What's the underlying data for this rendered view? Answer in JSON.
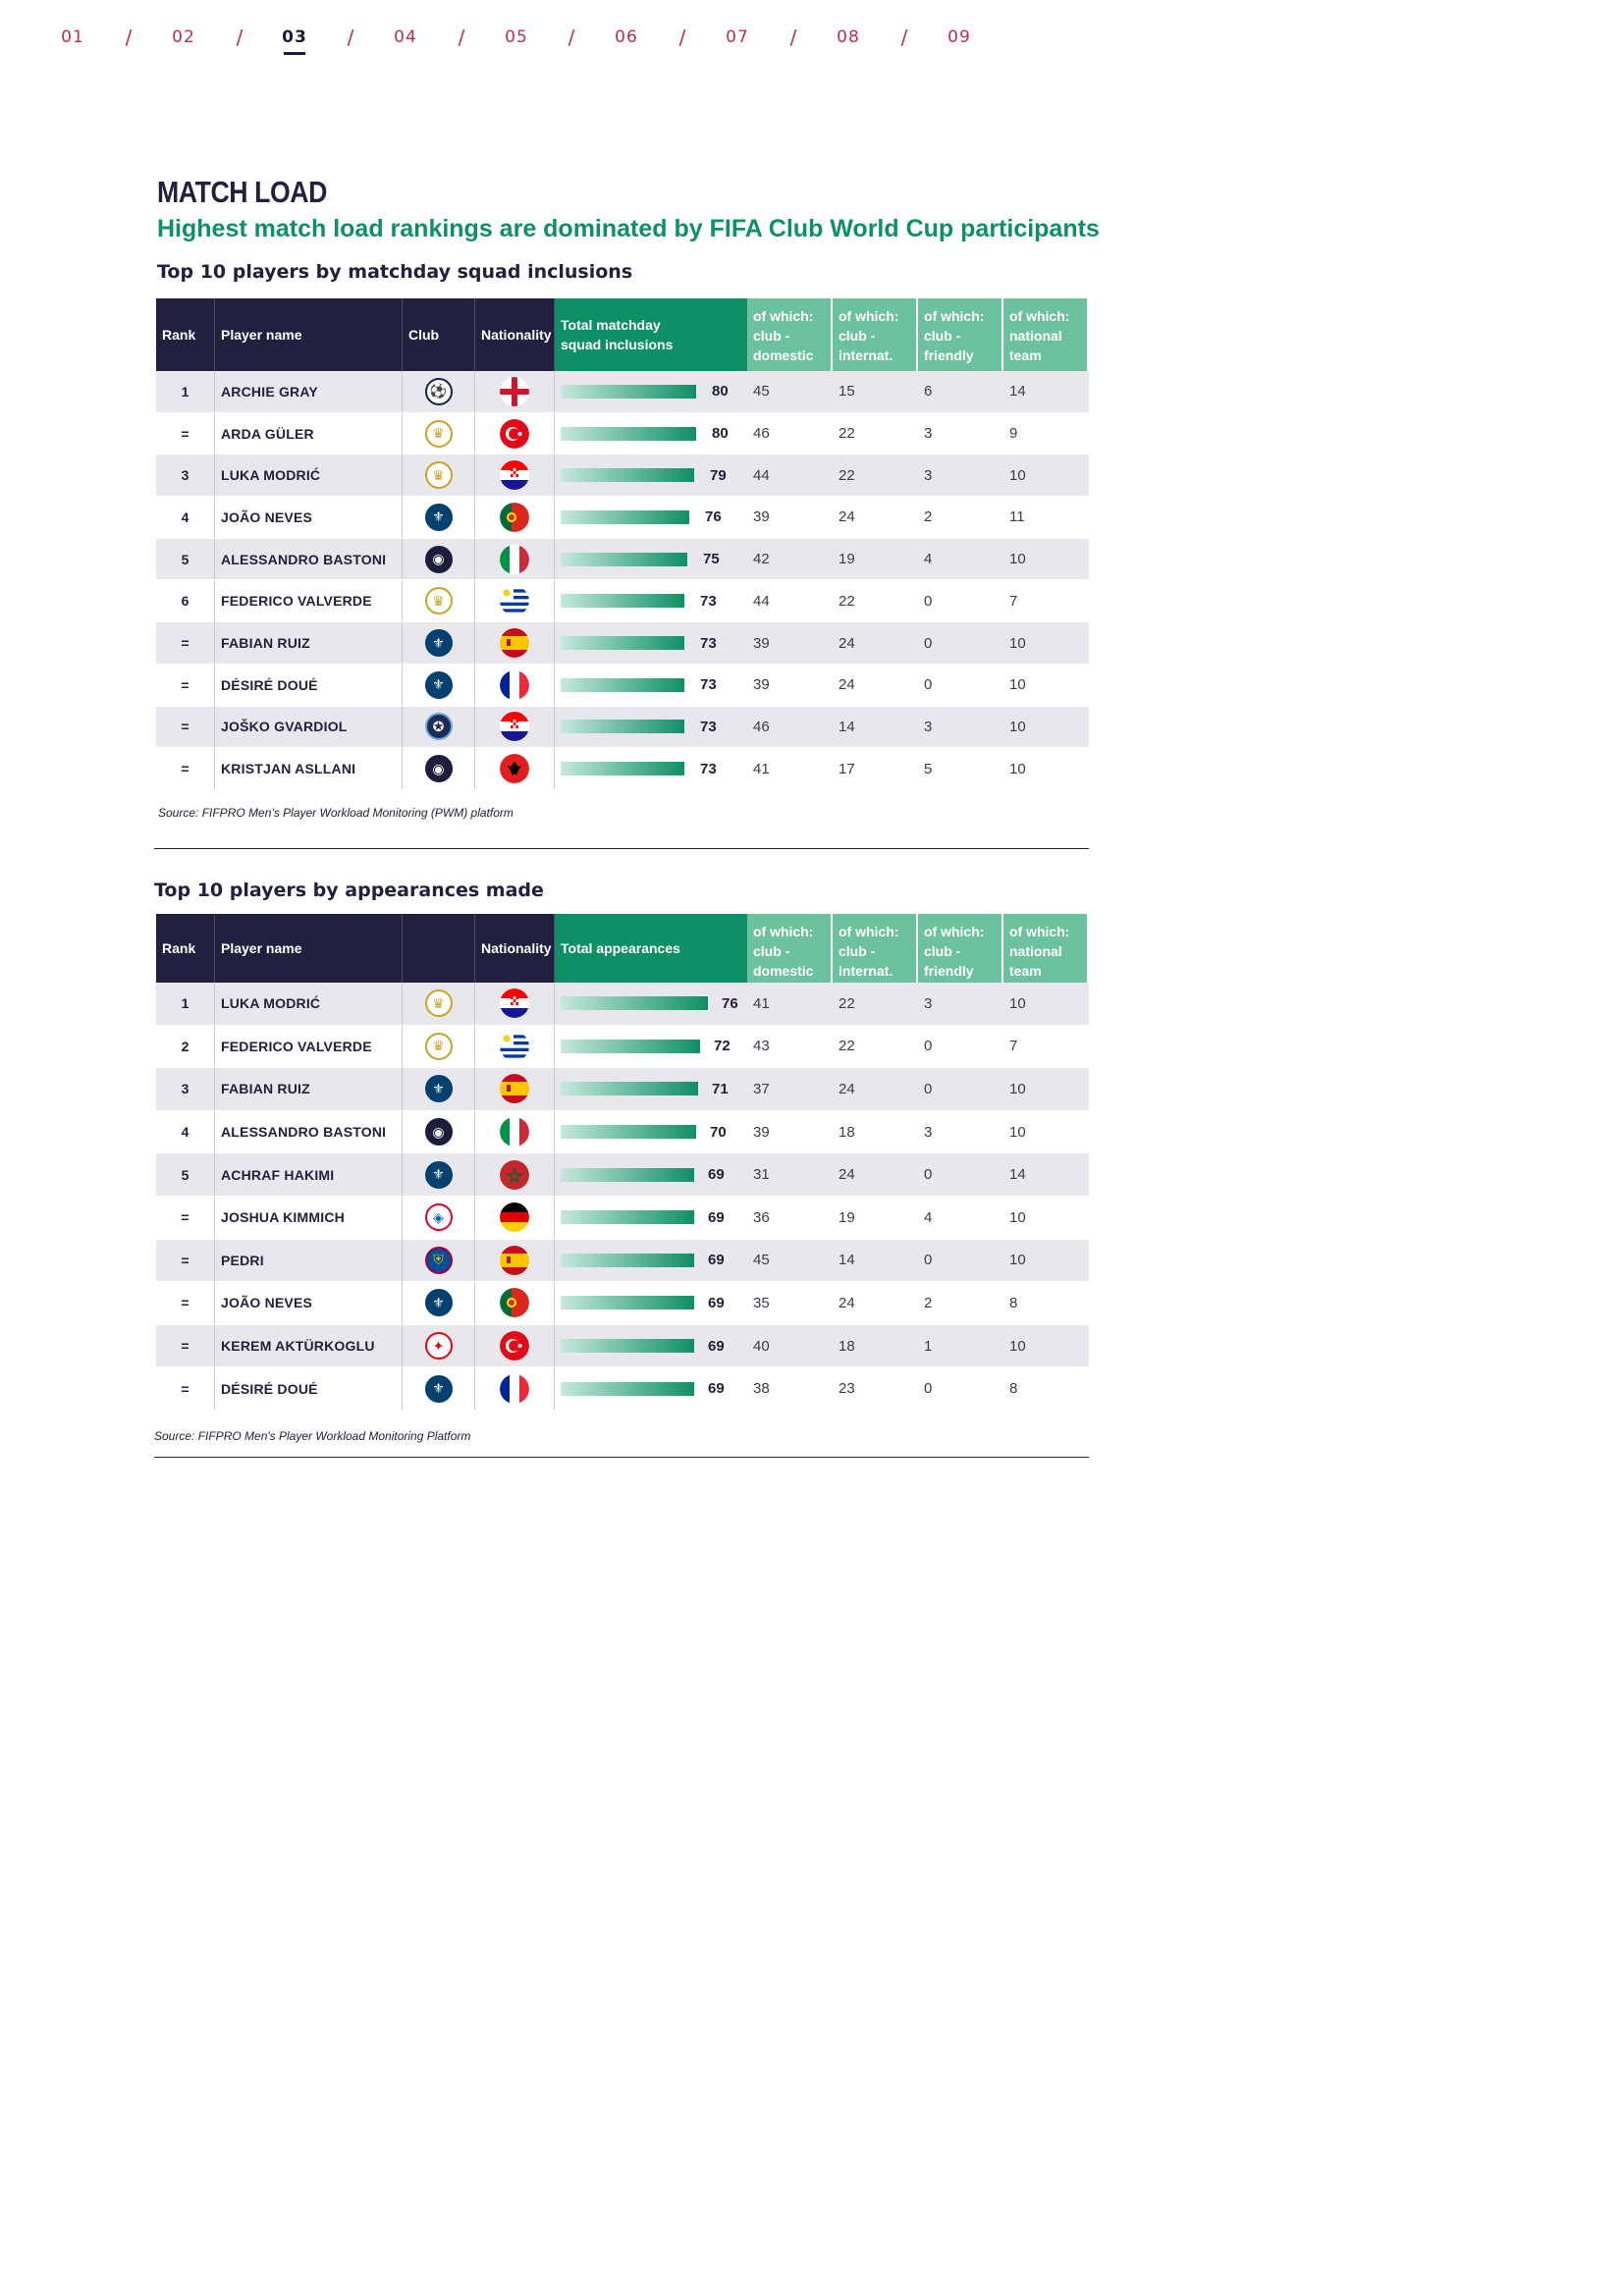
{
  "nav": {
    "items": [
      "01",
      "02",
      "03",
      "04",
      "05",
      "06",
      "07",
      "08",
      "09"
    ],
    "separator": "/",
    "active": "03"
  },
  "title": "MATCH LOAD",
  "subtitle": "Highest match load rankings are dominated by FIFA Club World Cup participants",
  "colors": {
    "navy": "#22203f",
    "green": "#0f8f65",
    "light_green": "#6cc19e",
    "nav_red": "#b8304a",
    "row_gray": "#e8e8ec"
  },
  "squad": {
    "heading": "Top 10 players by matchday squad inclusions",
    "headers": [
      "Rank",
      "Player name",
      "Club",
      "Nationality",
      "Total matchday squad inclusions",
      "of which: club - domestic",
      "of which: club - internat.",
      "of which: club - friendly",
      "of which: national team"
    ],
    "max": 80,
    "rows": [
      {
        "rank": "1",
        "name": "ARCHIE GRAY",
        "club": "tottenham-badge",
        "nation": "england-flag",
        "total": 80,
        "domestic": "45",
        "internat": "15",
        "friendly": "6",
        "national": "14"
      },
      {
        "rank": "=",
        "name": "ARDA GÜLER",
        "club": "real-madrid-badge",
        "nation": "turkey-flag",
        "total": 80,
        "domestic": "46",
        "internat": "22",
        "friendly": "3",
        "national": "9"
      },
      {
        "rank": "3",
        "name": "LUKA MODRIĆ",
        "club": "real-madrid-badge",
        "nation": "croatia-flag",
        "total": 79,
        "domestic": "44",
        "internat": "22",
        "friendly": "3",
        "national": "10"
      },
      {
        "rank": "4",
        "name": "JOÃO NEVES",
        "club": "psg-badge",
        "nation": "portugal-flag",
        "total": 76,
        "domestic": "39",
        "internat": "24",
        "friendly": "2",
        "national": "11"
      },
      {
        "rank": "5",
        "name": "ALESSANDRO BASTONI",
        "club": "inter-badge",
        "nation": "italy-flag",
        "total": 75,
        "domestic": "42",
        "internat": "19",
        "friendly": "4",
        "national": "10"
      },
      {
        "rank": "6",
        "name": "FEDERICO VALVERDE",
        "club": "real-madrid-badge",
        "nation": "uruguay-flag",
        "total": 73,
        "domestic": "44",
        "internat": "22",
        "friendly": "0",
        "national": "7"
      },
      {
        "rank": "=",
        "name": "FABIAN RUIZ",
        "club": "psg-badge",
        "nation": "spain-flag",
        "total": 73,
        "domestic": "39",
        "internat": "24",
        "friendly": "0",
        "national": "10"
      },
      {
        "rank": "=",
        "name": "DÉSIRÉ DOUÉ",
        "club": "psg-badge",
        "nation": "france-flag",
        "total": 73,
        "domestic": "39",
        "internat": "24",
        "friendly": "0",
        "national": "10"
      },
      {
        "rank": "=",
        "name": "JOŠKO GVARDIOL",
        "club": "man-city-badge",
        "nation": "croatia-flag",
        "total": 73,
        "domestic": "46",
        "internat": "14",
        "friendly": "3",
        "national": "10"
      },
      {
        "rank": "=",
        "name": "KRISTJAN ASLLANI",
        "club": "inter-badge",
        "nation": "albania-flag",
        "total": 73,
        "domestic": "41",
        "internat": "17",
        "friendly": "5",
        "national": "10"
      }
    ],
    "source": "Source: FIFPRO Men’s Player Workload Monitoring (PWM) platform"
  },
  "apps": {
    "heading": "Top 10 players by appearances made",
    "headers": [
      "Rank",
      "Player name",
      "",
      "Nationality",
      "Total appearances",
      "of which: club - domestic",
      "of which: club - internat.",
      "of which: club - friendly",
      "of which: national team"
    ],
    "max": 76,
    "rows": [
      {
        "rank": "1",
        "name": "LUKA MODRIĆ",
        "club": "real-madrid-badge",
        "nation": "croatia-flag",
        "total": 76,
        "domestic": "41",
        "internat": "22",
        "friendly": "3",
        "national": "10"
      },
      {
        "rank": "2",
        "name": "FEDERICO VALVERDE",
        "club": "real-madrid-badge",
        "nation": "uruguay-flag",
        "total": 72,
        "domestic": "43",
        "internat": "22",
        "friendly": "0",
        "national": "7"
      },
      {
        "rank": "3",
        "name": "FABIAN RUIZ",
        "club": "psg-badge",
        "nation": "spain-flag",
        "total": 71,
        "domestic": "37",
        "internat": "24",
        "friendly": "0",
        "national": "10"
      },
      {
        "rank": "4",
        "name": "ALESSANDRO BASTONI",
        "club": "inter-badge",
        "nation": "italy-flag",
        "total": 70,
        "domestic": "39",
        "internat": "18",
        "friendly": "3",
        "national": "10"
      },
      {
        "rank": "5",
        "name": "ACHRAF HAKIMI",
        "club": "psg-badge",
        "nation": "morocco-flag",
        "total": 69,
        "domestic": "31",
        "internat": "24",
        "friendly": "0",
        "national": "14"
      },
      {
        "rank": "=",
        "name": "JOSHUA KIMMICH",
        "club": "bayern-badge",
        "nation": "germany-flag",
        "total": 69,
        "domestic": "36",
        "internat": "19",
        "friendly": "4",
        "national": "10"
      },
      {
        "rank": "=",
        "name": "PEDRI",
        "club": "barcelona-badge",
        "nation": "spain-flag",
        "total": 69,
        "domestic": "45",
        "internat": "14",
        "friendly": "0",
        "national": "10"
      },
      {
        "rank": "=",
        "name": "JOÃO NEVES",
        "club": "psg-badge",
        "nation": "portugal-flag",
        "total": 69,
        "domestic": "35",
        "internat": "24",
        "friendly": "2",
        "national": "8"
      },
      {
        "rank": "=",
        "name": "KEREM AKTÜRKOGLU",
        "club": "benfica-badge",
        "nation": "turkey-flag",
        "total": 69,
        "domestic": "40",
        "internat": "18",
        "friendly": "1",
        "national": "10"
      },
      {
        "rank": "=",
        "name": "DÉSIRÉ DOUÉ",
        "club": "psg-badge",
        "nation": "france-flag",
        "total": 69,
        "domestic": "38",
        "internat": "23",
        "friendly": "0",
        "national": "8"
      }
    ],
    "source": "Source: FIFPRO Men's Player Workload Monitoring Platform"
  }
}
